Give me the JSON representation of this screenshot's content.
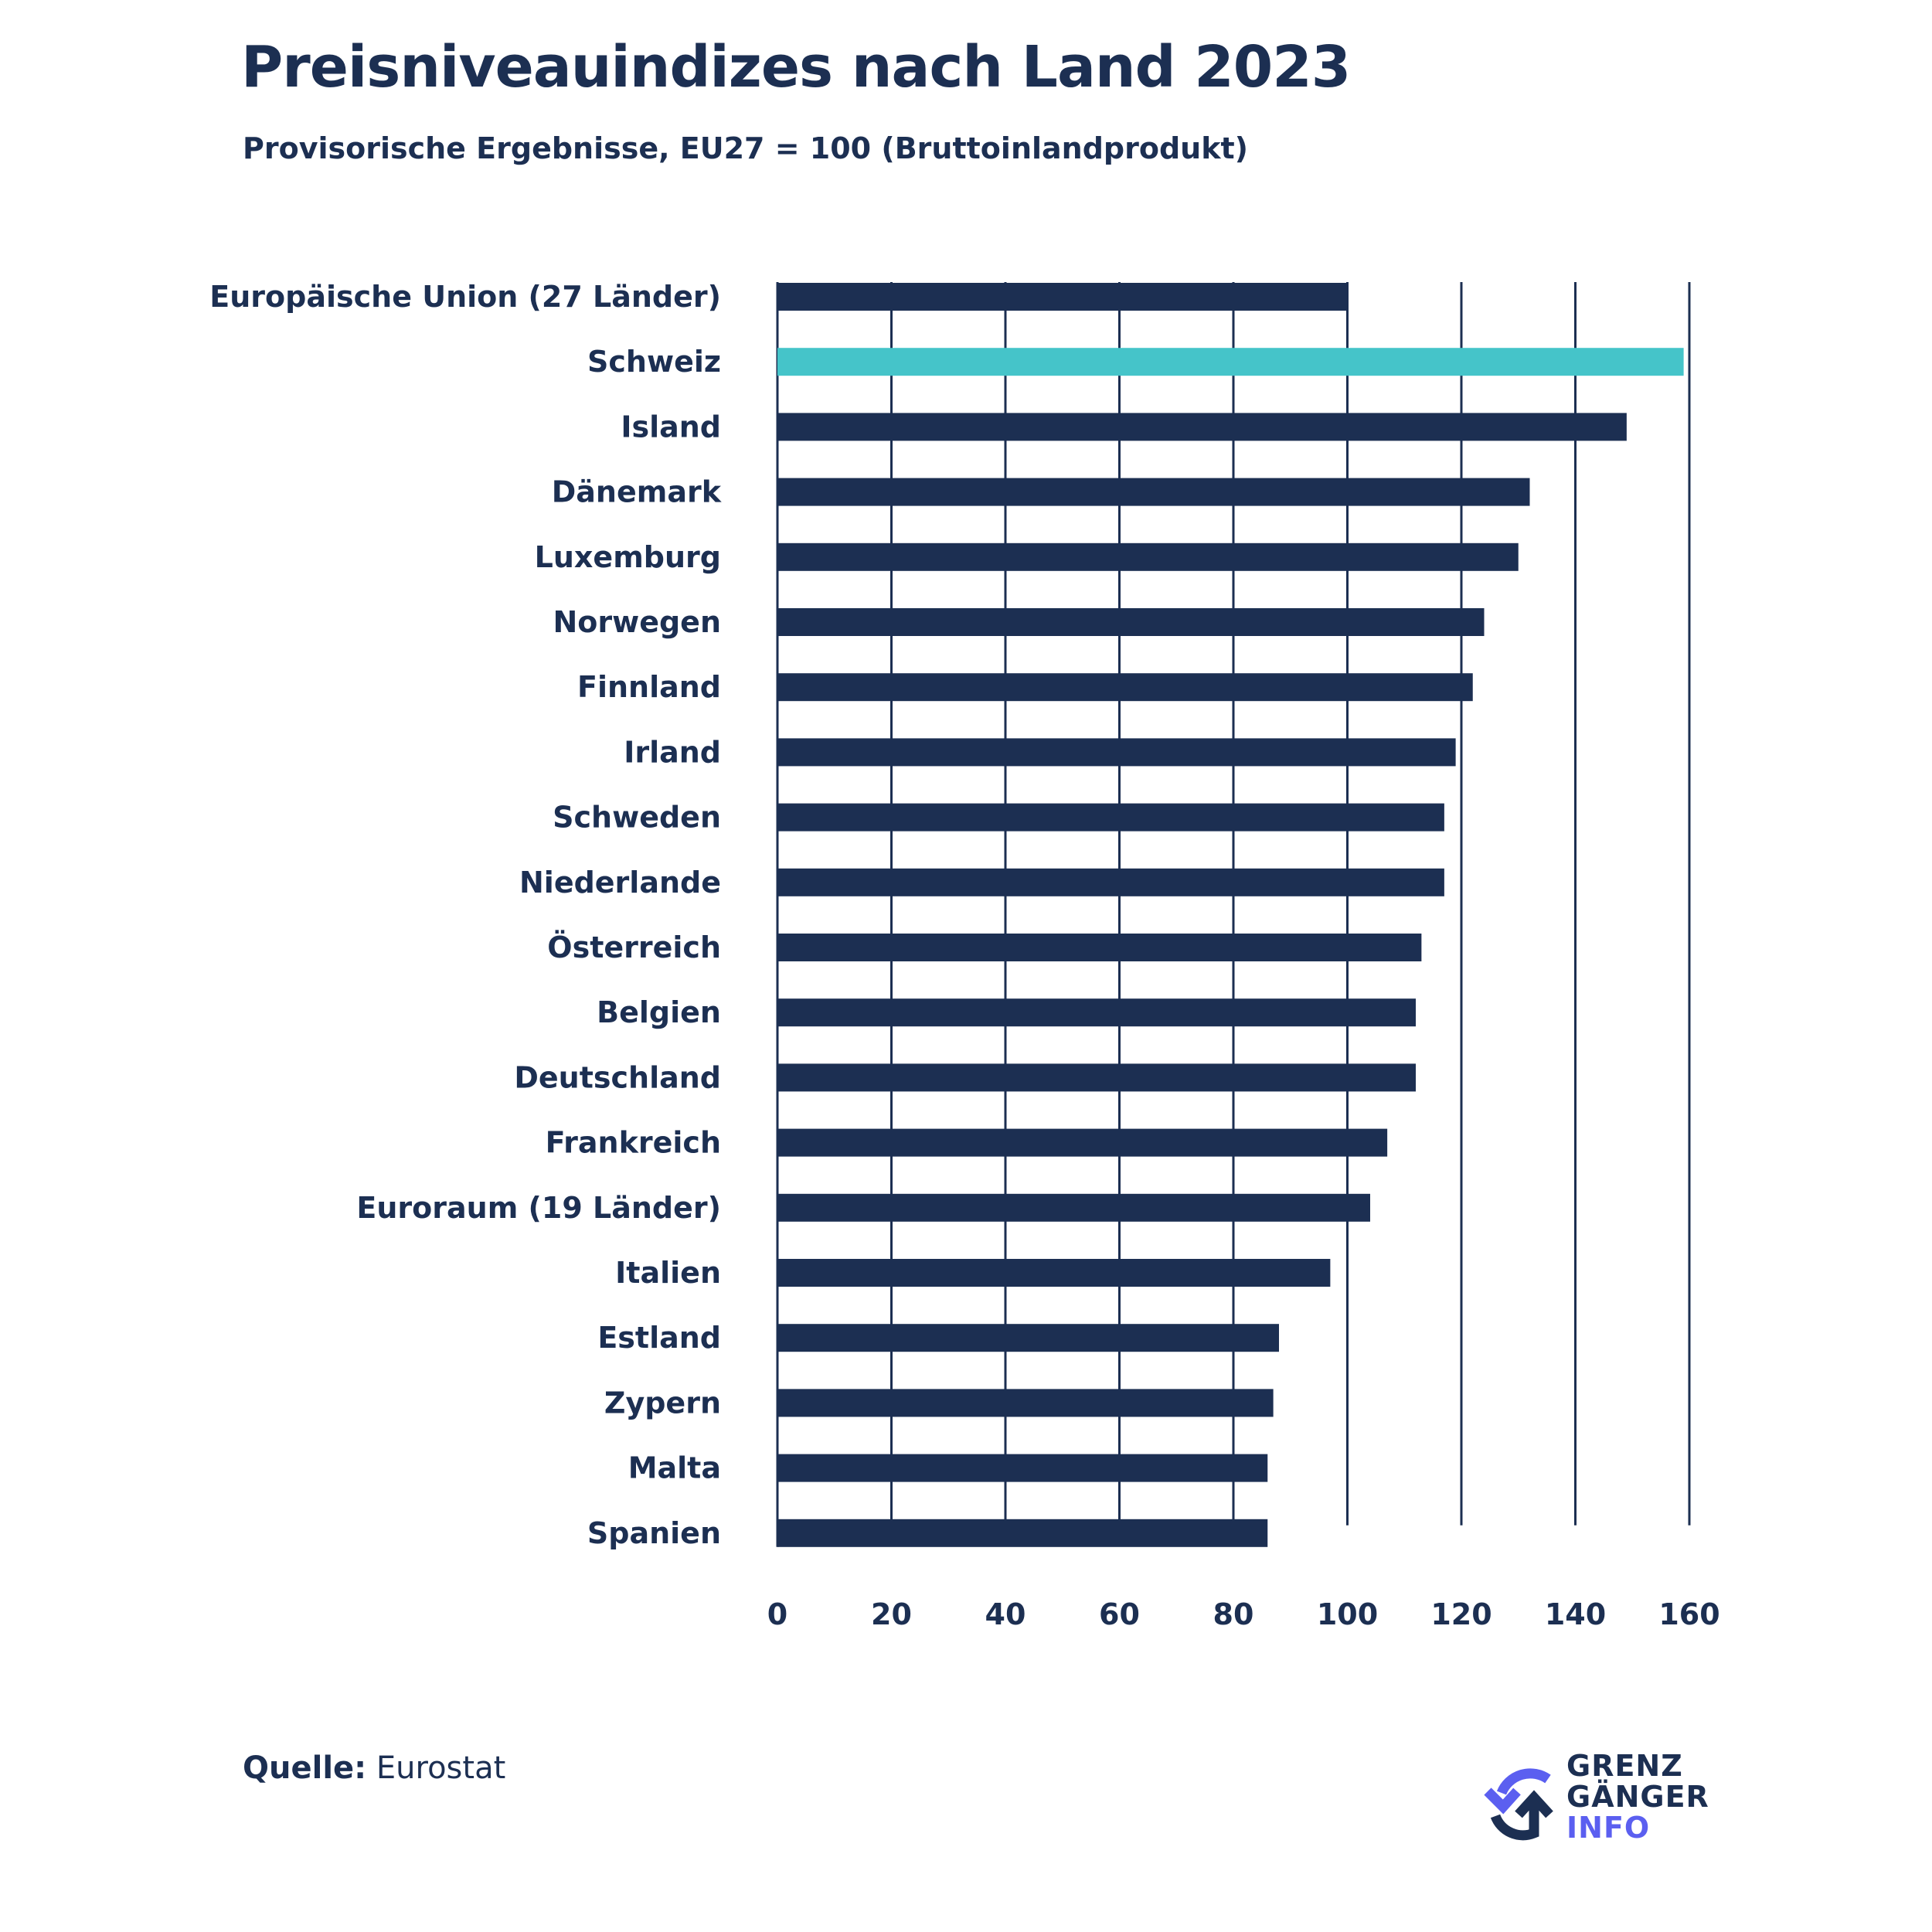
{
  "title": "Preisniveauindizes nach Land 2023",
  "subtitle": "Provisorische Ergebnisse, EU27 = 100 (Bruttoinlandprodukt)",
  "source_label": "Quelle:",
  "source_value": "Eurostat",
  "logo": {
    "line1": "GRENZ",
    "line2": "GÄNGER",
    "line3": "INFO"
  },
  "colors": {
    "bar": "#1c2f52",
    "highlight": "#45c4c9",
    "accent": "#5b5ff0"
  },
  "chart_data": {
    "type": "bar",
    "orientation": "horizontal",
    "title": "Preisniveauindizes nach Land 2023",
    "subtitle": "Provisorische Ergebnisse, EU27 = 100 (Bruttoinlandprodukt)",
    "categories": [
      "Europäische Union (27 Länder)",
      "Schweiz",
      "Island",
      "Dänemark",
      "Luxemburg",
      "Norwegen",
      "Finnland",
      "Irland",
      "Schweden",
      "Niederlande",
      "Österreich",
      "Belgien",
      "Deutschland",
      "Frankreich",
      "Euroraum (19 Länder)",
      "Italien",
      "Estland",
      "Zypern",
      "Malta",
      "Spanien"
    ],
    "values": [
      100,
      159,
      149,
      132,
      130,
      124,
      122,
      119,
      117,
      117,
      113,
      112,
      112,
      107,
      104,
      97,
      88,
      87,
      86,
      86
    ],
    "highlight": "Schweiz",
    "xlim": [
      0,
      160
    ],
    "xticks": [
      0,
      20,
      40,
      60,
      80,
      100,
      120,
      140,
      160
    ],
    "xlabel": "",
    "ylabel": "",
    "grid": true
  }
}
